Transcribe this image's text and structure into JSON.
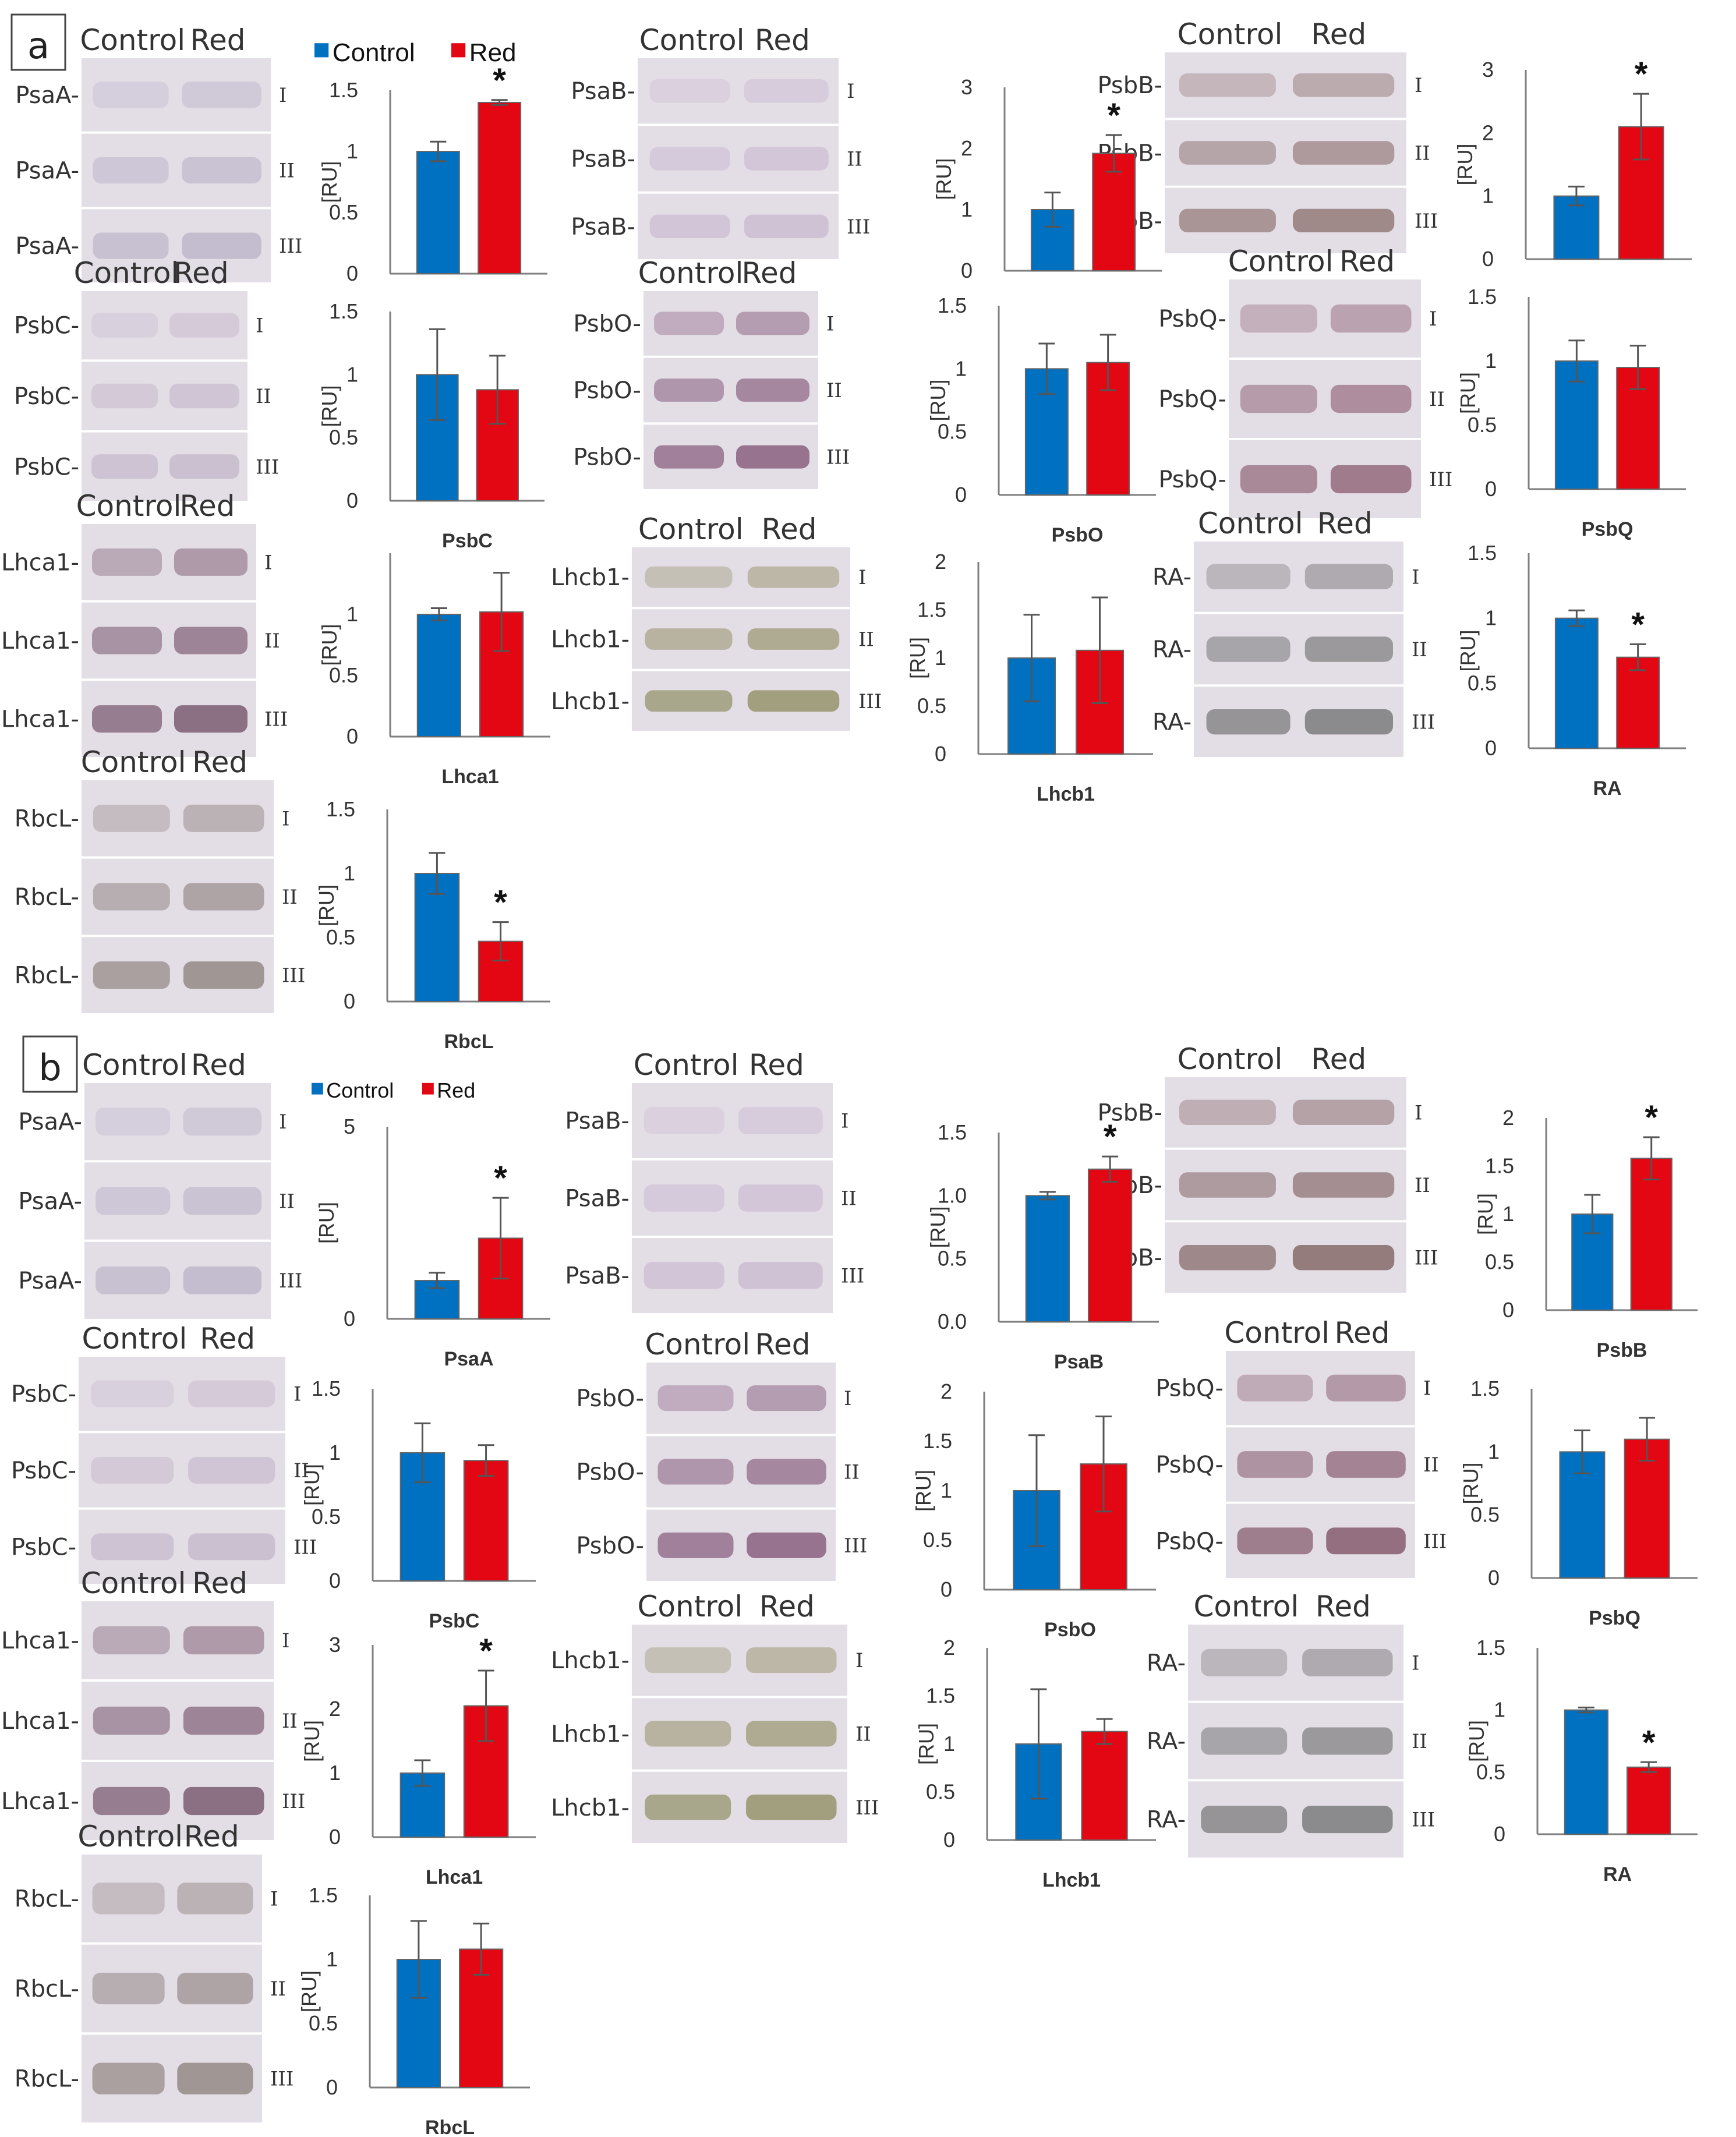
{
  "figure": {
    "colors": {
      "control": "#0070C0",
      "red": "#E30613",
      "axis": "#7f7f7f",
      "text": "#333333",
      "error": "#555555"
    },
    "replicate_labels": [
      "I",
      "II",
      "III"
    ],
    "panels": [
      {
        "label": "a",
        "legend": {
          "control": "Control",
          "red": "Red"
        },
        "blots": [
          {
            "protein": "PsaA",
            "header": [
              "Control",
              "Red"
            ],
            "tone": "#b9b2c8"
          },
          {
            "protein": "PsaB",
            "header": [
              "Control",
              "Red"
            ],
            "tone": "#c8b8cf"
          },
          {
            "protein": "PsbB",
            "header": [
              "Control",
              "Red"
            ],
            "tone": "#8a6e6a"
          },
          {
            "protein": "PsbC",
            "header": [
              "Control",
              "Red"
            ],
            "tone": "#c3b6c8"
          },
          {
            "protein": "PsbO",
            "header": [
              "Control",
              "Red"
            ],
            "tone": "#7d4f72"
          },
          {
            "protein": "PsbQ",
            "header": [
              "Control",
              "Red"
            ],
            "tone": "#8a5a6e"
          },
          {
            "protein": "Lhca1",
            "header": [
              "Control",
              "Red"
            ],
            "tone": "#6e4a62"
          },
          {
            "protein": "Lhcb1",
            "header": [
              "Control",
              "Red"
            ],
            "tone": "#8b8a5a"
          },
          {
            "protein": "RA",
            "header": [
              "Control",
              "Red"
            ],
            "tone": "#6d6d6d"
          },
          {
            "protein": "RbcL",
            "header": [
              "Control",
              "Red"
            ],
            "tone": "#8a7f7a"
          }
        ]
      },
      {
        "label": "b",
        "legend": {
          "control": "Control",
          "red": "Red"
        },
        "blots": [
          {
            "protein": "PsaA",
            "header": [
              "Control",
              "Red"
            ],
            "tone": "#b9b2c8"
          },
          {
            "protein": "PsaB",
            "header": [
              "Control",
              "Red"
            ],
            "tone": "#c8b8cf"
          },
          {
            "protein": "PsbB",
            "header": [
              "Control",
              "Red"
            ],
            "tone": "#7a5a58"
          },
          {
            "protein": "PsbC",
            "header": [
              "Control",
              "Red"
            ],
            "tone": "#c3b6c8"
          },
          {
            "protein": "PsbO",
            "header": [
              "Control",
              "Red"
            ],
            "tone": "#7d4f72"
          },
          {
            "protein": "PsbQ",
            "header": [
              "Control",
              "Red"
            ],
            "tone": "#7a4a5e"
          },
          {
            "protein": "Lhca1",
            "header": [
              "Control",
              "Red"
            ],
            "tone": "#6e4a62"
          },
          {
            "protein": "Lhcb1",
            "header": [
              "Control",
              "Red"
            ],
            "tone": "#8b8a5a"
          },
          {
            "protein": "RA",
            "header": [
              "Control",
              "Red"
            ],
            "tone": "#6d6d6d"
          },
          {
            "protein": "RbcL",
            "header": [
              "Control",
              "Red"
            ],
            "tone": "#8a7f7a"
          }
        ]
      }
    ]
  },
  "chart_data": [
    {
      "panel": "a",
      "type": "bar",
      "title": "",
      "xlabel": "",
      "ylabel": "[RU]",
      "categories": [
        "Control",
        "Red"
      ],
      "values": [
        1.0,
        1.4
      ],
      "errors": [
        0.08,
        0.02
      ],
      "ylim": [
        0,
        1.5
      ],
      "yticks": [
        "0",
        "0.5",
        "1",
        "1.5"
      ],
      "significant": "*",
      "legend": true
    },
    {
      "panel": "a",
      "type": "bar",
      "title": "",
      "xlabel": "",
      "ylabel": "[RU]",
      "categories": [
        "Control",
        "Red"
      ],
      "values": [
        1.0,
        1.92
      ],
      "errors": [
        0.28,
        0.3
      ],
      "ylim": [
        0,
        3
      ],
      "yticks": [
        "0",
        "1",
        "2",
        "3"
      ],
      "significant": "*"
    },
    {
      "panel": "a",
      "type": "bar",
      "title": "",
      "xlabel": "",
      "ylabel": "[RU]",
      "categories": [
        "Control",
        "Red"
      ],
      "values": [
        1.0,
        2.1
      ],
      "errors": [
        0.15,
        0.52
      ],
      "ylim": [
        0,
        3
      ],
      "yticks": [
        "0",
        "1",
        "2",
        "3"
      ],
      "significant": "*"
    },
    {
      "panel": "a",
      "type": "bar",
      "title": "PsbC",
      "xlabel": "PsbC",
      "ylabel": "[RU]",
      "categories": [
        "Control",
        "Red"
      ],
      "values": [
        1.0,
        0.88
      ],
      "errors": [
        0.36,
        0.27
      ],
      "ylim": [
        0,
        1.5
      ],
      "yticks": [
        "0",
        "0.5",
        "1",
        "1.5"
      ],
      "significant": ""
    },
    {
      "panel": "a",
      "type": "bar",
      "title": "PsbO",
      "xlabel": "PsbO",
      "ylabel": "[RU]",
      "categories": [
        "Control",
        "Red"
      ],
      "values": [
        1.0,
        1.05
      ],
      "errors": [
        0.2,
        0.22
      ],
      "ylim": [
        0,
        1.5
      ],
      "yticks": [
        "0",
        "0.5",
        "1",
        "1.5"
      ],
      "significant": ""
    },
    {
      "panel": "a",
      "type": "bar",
      "title": "PsbQ",
      "xlabel": "PsbQ",
      "ylabel": "[RU]",
      "categories": [
        "Control",
        "Red"
      ],
      "values": [
        1.0,
        0.95
      ],
      "errors": [
        0.16,
        0.17
      ],
      "ylim": [
        0,
        1.5
      ],
      "yticks": [
        "0",
        "0.5",
        "1",
        "1.5"
      ],
      "significant": ""
    },
    {
      "panel": "a",
      "type": "bar",
      "title": "Lhca1",
      "xlabel": "Lhca1",
      "ylabel": "[RU]",
      "categories": [
        "Control",
        "Red"
      ],
      "values": [
        1.0,
        1.02
      ],
      "errors": [
        0.05,
        0.32
      ],
      "ylim": [
        0,
        1.5
      ],
      "yticks": [
        "0",
        "0.5",
        "1",
        ""
      ],
      "significant": ""
    },
    {
      "panel": "a",
      "type": "bar",
      "title": "Lhcb1",
      "xlabel": "Lhcb1",
      "ylabel": "[RU]",
      "categories": [
        "Control",
        "Red"
      ],
      "values": [
        1.0,
        1.08
      ],
      "errors": [
        0.45,
        0.55
      ],
      "ylim": [
        0,
        2
      ],
      "yticks": [
        "0",
        "0.5",
        "1",
        "1.5",
        "2"
      ],
      "significant": ""
    },
    {
      "panel": "a",
      "type": "bar",
      "title": "RA",
      "xlabel": "RA",
      "ylabel": "[RU]",
      "categories": [
        "Control",
        "Red"
      ],
      "values": [
        1.0,
        0.7
      ],
      "errors": [
        0.06,
        0.1
      ],
      "ylim": [
        0,
        1.5
      ],
      "yticks": [
        "0",
        "0.5",
        "1",
        "1.5"
      ],
      "significant": "*"
    },
    {
      "panel": "a",
      "type": "bar",
      "title": "RbcL",
      "xlabel": "RbcL",
      "ylabel": "[RU]",
      "categories": [
        "Control",
        "Red"
      ],
      "values": [
        1.0,
        0.47
      ],
      "errors": [
        0.16,
        0.15
      ],
      "ylim": [
        0,
        1.5
      ],
      "yticks": [
        "0",
        "0.5",
        "1",
        "1.5"
      ],
      "significant": "*"
    },
    {
      "panel": "b",
      "type": "bar",
      "title": "PsaA",
      "xlabel": "PsaA",
      "ylabel": "[RU]",
      "categories": [
        "Control",
        "Red"
      ],
      "values": [
        1.0,
        2.1
      ],
      "errors": [
        0.2,
        1.05
      ],
      "ylim": [
        0,
        5
      ],
      "yticks": [
        "0",
        "5"
      ],
      "significant": "*",
      "legend": true
    },
    {
      "panel": "b",
      "type": "bar",
      "title": "PsaB",
      "xlabel": "PsaB",
      "ylabel": "[RU]",
      "categories": [
        "Control",
        "Red"
      ],
      "values": [
        1.0,
        1.21
      ],
      "errors": [
        0.03,
        0.1
      ],
      "ylim": [
        0,
        1.5
      ],
      "yticks": [
        "0.0",
        "0.5",
        "1.0",
        "1.5"
      ],
      "significant": "*"
    },
    {
      "panel": "b",
      "type": "bar",
      "title": "PsbB",
      "xlabel": "PsbB",
      "ylabel": "[RU]",
      "categories": [
        "Control",
        "Red"
      ],
      "values": [
        1.0,
        1.58
      ],
      "errors": [
        0.2,
        0.22
      ],
      "ylim": [
        0,
        2
      ],
      "yticks": [
        "0",
        "0.5",
        "1",
        "1.5",
        "2"
      ],
      "significant": "*"
    },
    {
      "panel": "b",
      "type": "bar",
      "title": "PsbC",
      "xlabel": "PsbC",
      "ylabel": "[RU]",
      "categories": [
        "Control",
        "Red"
      ],
      "values": [
        1.0,
        0.94
      ],
      "errors": [
        0.23,
        0.12
      ],
      "ylim": [
        0,
        1.5
      ],
      "yticks": [
        "0",
        "0.5",
        "1",
        "1.5"
      ],
      "significant": ""
    },
    {
      "panel": "b",
      "type": "bar",
      "title": "PsbO",
      "xlabel": "PsbO",
      "ylabel": "[RU]",
      "categories": [
        "Control",
        "Red"
      ],
      "values": [
        1.0,
        1.27
      ],
      "errors": [
        0.56,
        0.48
      ],
      "ylim": [
        0,
        2
      ],
      "yticks": [
        "0",
        "0.5",
        "1",
        "1.5",
        "2"
      ],
      "significant": ""
    },
    {
      "panel": "b",
      "type": "bar",
      "title": "PsbQ",
      "xlabel": "PsbQ",
      "ylabel": "[RU]",
      "categories": [
        "Control",
        "Red"
      ],
      "values": [
        1.0,
        1.1
      ],
      "errors": [
        0.17,
        0.17
      ],
      "ylim": [
        0,
        1.5
      ],
      "yticks": [
        "0",
        "0.5",
        "1",
        "1.5"
      ],
      "significant": ""
    },
    {
      "panel": "b",
      "type": "bar",
      "title": "Lhca1",
      "xlabel": "Lhca1",
      "ylabel": "[RU]",
      "categories": [
        "Control",
        "Red"
      ],
      "values": [
        1.0,
        2.05
      ],
      "errors": [
        0.2,
        0.55
      ],
      "ylim": [
        0,
        3
      ],
      "yticks": [
        "0",
        "1",
        "2",
        "3"
      ],
      "significant": "*"
    },
    {
      "panel": "b",
      "type": "bar",
      "title": "Lhcb1",
      "xlabel": "Lhcb1",
      "ylabel": "[RU]",
      "categories": [
        "Control",
        "Red"
      ],
      "values": [
        1.0,
        1.13
      ],
      "errors": [
        0.57,
        0.13
      ],
      "ylim": [
        0,
        2
      ],
      "yticks": [
        "0",
        "0.5",
        "1",
        "1.5",
        "2"
      ],
      "significant": ""
    },
    {
      "panel": "b",
      "type": "bar",
      "title": "RA",
      "xlabel": "RA",
      "ylabel": "[RU]",
      "categories": [
        "Control",
        "Red"
      ],
      "values": [
        1.0,
        0.54
      ],
      "errors": [
        0.02,
        0.04
      ],
      "ylim": [
        0,
        1.5
      ],
      "yticks": [
        "0",
        "0.5",
        "1",
        "1.5"
      ],
      "significant": "*"
    },
    {
      "panel": "b",
      "type": "bar",
      "title": "RbcL",
      "xlabel": "RbcL",
      "ylabel": "[RU]",
      "categories": [
        "Control",
        "Red"
      ],
      "values": [
        1.0,
        1.08
      ],
      "errors": [
        0.3,
        0.2
      ],
      "ylim": [
        0,
        1.5
      ],
      "yticks": [
        "0",
        "0.5",
        "1",
        "1.5"
      ],
      "significant": ""
    }
  ]
}
